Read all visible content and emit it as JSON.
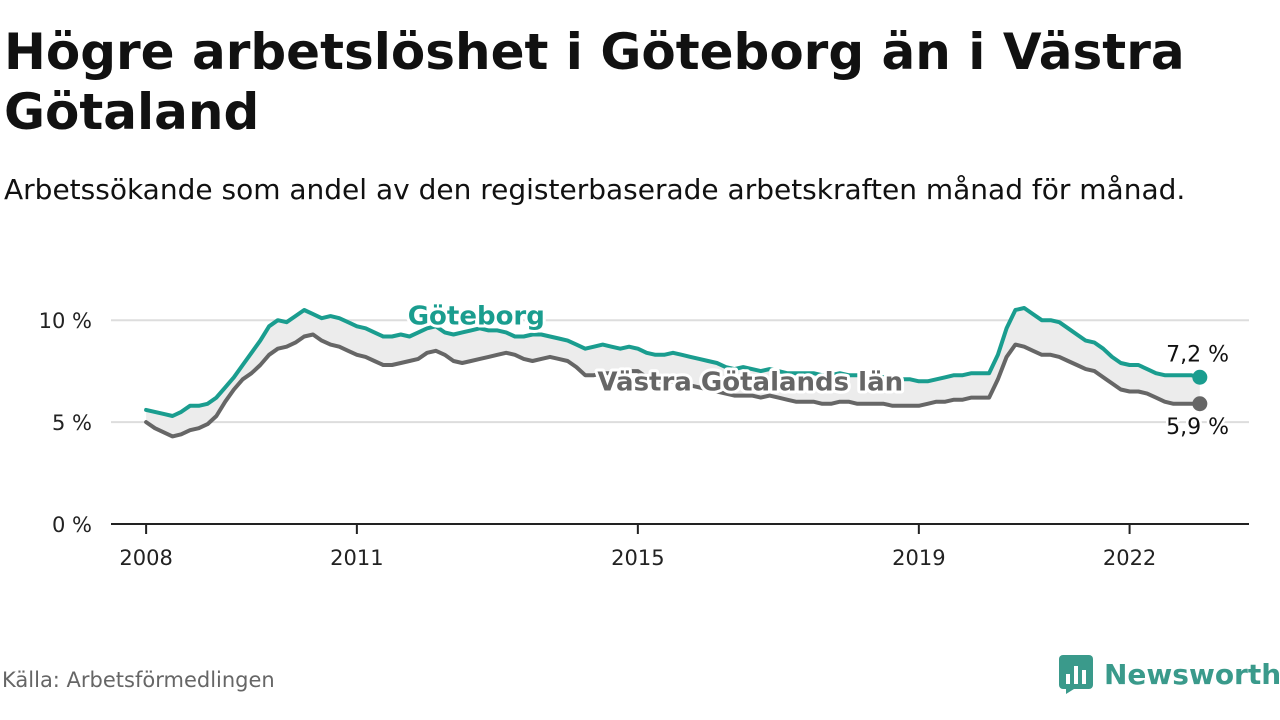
{
  "header": {
    "title": "Högre arbetslöshet i Göteborg än i Västra Götaland",
    "subtitle": "Arbetssökande som andel av den registerbaserade arbetskraften månad för månad."
  },
  "footer": {
    "source": "Källa: Arbetsförmedlingen",
    "brand": "Newsworthy"
  },
  "colors": {
    "goteborg": "#1a9d8f",
    "vgl": "#666666",
    "band": "#ececec",
    "axis": "#222222",
    "grid": "#dddddd",
    "brand": "#3a9a8b"
  },
  "chart_data": {
    "type": "line",
    "title": "Högre arbetslöshet i Göteborg än i Västra Götaland",
    "xlabel": "",
    "ylabel": "",
    "ylim": [
      0,
      10.5
    ],
    "xlim": [
      2007.5,
      2023.7
    ],
    "y_ticks": [
      {
        "value": 0,
        "label": "0 %"
      },
      {
        "value": 5,
        "label": "5 %"
      },
      {
        "value": 10,
        "label": "10 %"
      }
    ],
    "x_ticks": [
      {
        "value": 2008.0,
        "label": "2008"
      },
      {
        "value": 2011.0,
        "label": "2011"
      },
      {
        "value": 2015.0,
        "label": "2015"
      },
      {
        "value": 2019.0,
        "label": "2019"
      },
      {
        "value": 2022.0,
        "label": "2022"
      }
    ],
    "x": [
      2008.0,
      2008.125,
      2008.25,
      2008.375,
      2008.5,
      2008.625,
      2008.75,
      2008.875,
      2009.0,
      2009.125,
      2009.25,
      2009.375,
      2009.5,
      2009.625,
      2009.75,
      2009.875,
      2010.0,
      2010.125,
      2010.25,
      2010.375,
      2010.5,
      2010.625,
      2010.75,
      2010.875,
      2011.0,
      2011.125,
      2011.25,
      2011.375,
      2011.5,
      2011.625,
      2011.75,
      2011.875,
      2012.0,
      2012.125,
      2012.25,
      2012.375,
      2012.5,
      2012.625,
      2012.75,
      2012.875,
      2013.0,
      2013.125,
      2013.25,
      2013.375,
      2013.5,
      2013.625,
      2013.75,
      2013.875,
      2014.0,
      2014.125,
      2014.25,
      2014.375,
      2014.5,
      2014.625,
      2014.75,
      2014.875,
      2015.0,
      2015.125,
      2015.25,
      2015.375,
      2015.5,
      2015.625,
      2015.75,
      2015.875,
      2016.0,
      2016.125,
      2016.25,
      2016.375,
      2016.5,
      2016.625,
      2016.75,
      2016.875,
      2017.0,
      2017.125,
      2017.25,
      2017.375,
      2017.5,
      2017.625,
      2017.75,
      2017.875,
      2018.0,
      2018.125,
      2018.25,
      2018.375,
      2018.5,
      2018.625,
      2018.75,
      2018.875,
      2019.0,
      2019.125,
      2019.25,
      2019.375,
      2019.5,
      2019.625,
      2019.75,
      2019.875,
      2020.0,
      2020.125,
      2020.25,
      2020.375,
      2020.5,
      2020.625,
      2020.75,
      2020.875,
      2021.0,
      2021.125,
      2021.25,
      2021.375,
      2021.5,
      2021.625,
      2021.75,
      2021.875,
      2022.0,
      2022.125,
      2022.25,
      2022.375,
      2022.5,
      2022.625,
      2022.75,
      2022.875,
      2023.0
    ],
    "series": [
      {
        "name": "Göteborg",
        "label_x": 2012.7,
        "label_y": 9.8,
        "end_label": "7,2 %",
        "values": [
          5.6,
          5.5,
          5.4,
          5.3,
          5.5,
          5.8,
          5.8,
          5.9,
          6.2,
          6.7,
          7.2,
          7.8,
          8.4,
          9.0,
          9.7,
          10.0,
          9.9,
          10.2,
          10.5,
          10.3,
          10.1,
          10.2,
          10.1,
          9.9,
          9.7,
          9.6,
          9.4,
          9.2,
          9.2,
          9.3,
          9.2,
          9.4,
          9.6,
          9.7,
          9.4,
          9.3,
          9.4,
          9.5,
          9.6,
          9.5,
          9.5,
          9.4,
          9.2,
          9.2,
          9.3,
          9.3,
          9.2,
          9.1,
          9.0,
          8.8,
          8.6,
          8.7,
          8.8,
          8.7,
          8.6,
          8.7,
          8.6,
          8.4,
          8.3,
          8.3,
          8.4,
          8.3,
          8.2,
          8.1,
          8.0,
          7.9,
          7.7,
          7.6,
          7.7,
          7.6,
          7.5,
          7.6,
          7.5,
          7.4,
          7.4,
          7.4,
          7.4,
          7.3,
          7.3,
          7.4,
          7.3,
          7.3,
          7.2,
          7.3,
          7.2,
          7.2,
          7.1,
          7.1,
          7.0,
          7.0,
          7.1,
          7.2,
          7.3,
          7.3,
          7.4,
          7.4,
          7.4,
          8.3,
          9.6,
          10.5,
          10.6,
          10.3,
          10.0,
          10.0,
          9.9,
          9.6,
          9.3,
          9.0,
          8.9,
          8.6,
          8.2,
          7.9,
          7.8,
          7.8,
          7.6,
          7.4,
          7.3,
          7.3,
          7.3,
          7.3,
          7.2
        ]
      },
      {
        "name": "Västra Götalands län",
        "label_x": 2016.6,
        "label_y": 6.55,
        "end_label": "5,9 %",
        "values": [
          5.0,
          4.7,
          4.5,
          4.3,
          4.4,
          4.6,
          4.7,
          4.9,
          5.3,
          6.0,
          6.6,
          7.1,
          7.4,
          7.8,
          8.3,
          8.6,
          8.7,
          8.9,
          9.2,
          9.3,
          9.0,
          8.8,
          8.7,
          8.5,
          8.3,
          8.2,
          8.0,
          7.8,
          7.8,
          7.9,
          8.0,
          8.1,
          8.4,
          8.5,
          8.3,
          8.0,
          7.9,
          8.0,
          8.1,
          8.2,
          8.3,
          8.4,
          8.3,
          8.1,
          8.0,
          8.1,
          8.2,
          8.1,
          8.0,
          7.7,
          7.3,
          7.3,
          7.4,
          7.4,
          7.3,
          7.5,
          7.5,
          7.2,
          7.0,
          7.0,
          7.0,
          6.9,
          6.8,
          6.7,
          6.6,
          6.5,
          6.4,
          6.3,
          6.3,
          6.3,
          6.2,
          6.3,
          6.2,
          6.1,
          6.0,
          6.0,
          6.0,
          5.9,
          5.9,
          6.0,
          6.0,
          5.9,
          5.9,
          5.9,
          5.9,
          5.8,
          5.8,
          5.8,
          5.8,
          5.9,
          6.0,
          6.0,
          6.1,
          6.1,
          6.2,
          6.2,
          6.2,
          7.1,
          8.2,
          8.8,
          8.7,
          8.5,
          8.3,
          8.3,
          8.2,
          8.0,
          7.8,
          7.6,
          7.5,
          7.2,
          6.9,
          6.6,
          6.5,
          6.5,
          6.4,
          6.2,
          6.0,
          5.9,
          5.9,
          5.9,
          5.9
        ]
      }
    ]
  }
}
